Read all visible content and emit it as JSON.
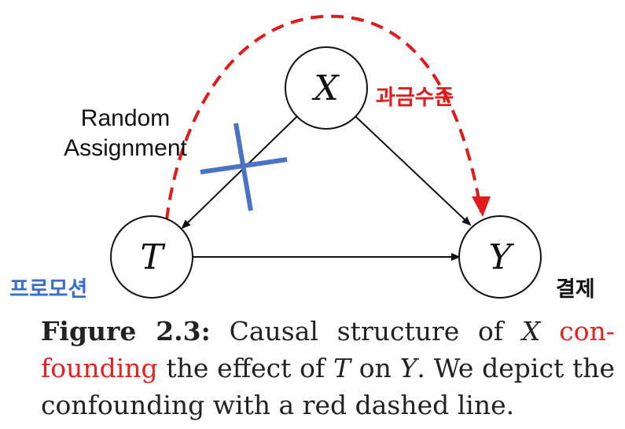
{
  "nodes": {
    "x": "X",
    "t": "T",
    "y": "Y"
  },
  "labels": {
    "random_line1": "Random",
    "random_line2": "Assignment",
    "promotion": "프로모션",
    "billing_level": "과금수준",
    "payment": "결제"
  },
  "caption": {
    "figure_label": "Figure 2.3:",
    "text1": " Causal structure of ",
    "x": "X",
    "confounding": " con-founding",
    "text2": " the effect of ",
    "t": "T",
    "text3": " on ",
    "y": "Y",
    "text4": ". We depict the confounding with a red dashed line."
  },
  "colors": {
    "confounding_path": "#e11b1b",
    "blocked_cross": "#4a73c4",
    "edges": "#111111"
  },
  "icons": {
    "arrowheads": "triangle",
    "blocked_edge": "cross-mark"
  }
}
